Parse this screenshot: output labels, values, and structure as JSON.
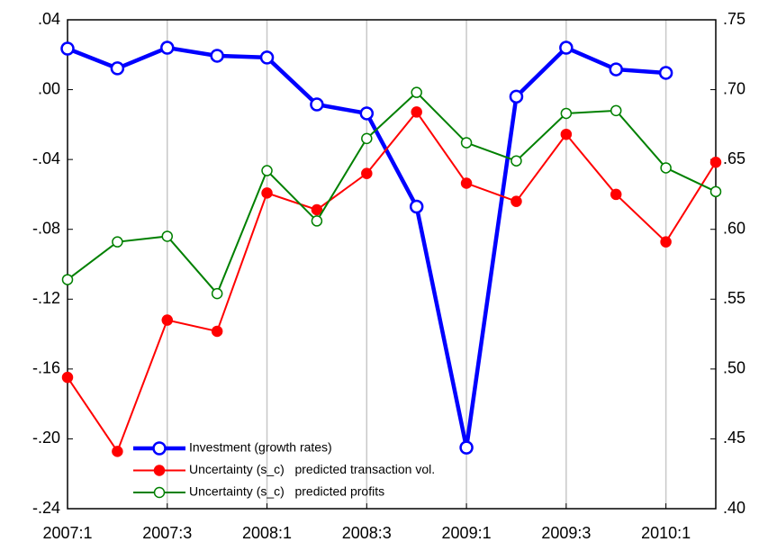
{
  "chart_data": {
    "type": "line",
    "categories": [
      "2007:1",
      null,
      "2007:3",
      null,
      "2008:1",
      null,
      "2008:3",
      null,
      "2009:1",
      null,
      "2009:3",
      null,
      "2010:1",
      null
    ],
    "series": [
      {
        "name": "Investment (growth rates)",
        "color": "#0000ff",
        "axis": "y",
        "marker": "open",
        "values": [
          0.0235,
          0.0122,
          0.024,
          0.0194,
          0.0184,
          -0.0085,
          -0.0136,
          -0.067,
          -0.205,
          -0.004,
          0.024,
          0.0116,
          0.0096,
          null
        ]
      },
      {
        "name": "Uncertainty (s_c)   predicted transaction vol.",
        "color": "#ff0000",
        "axis": "y2",
        "marker": "filled",
        "values": [
          0.494,
          0.441,
          0.535,
          0.527,
          0.626,
          0.614,
          0.64,
          0.684,
          0.633,
          0.62,
          0.668,
          0.625,
          0.591,
          0.648
        ]
      },
      {
        "name": "Uncertainty (s_c)   predicted profits",
        "color": "#008000",
        "axis": "y2",
        "marker": "open",
        "values": [
          0.564,
          0.591,
          0.595,
          0.554,
          0.642,
          0.606,
          0.665,
          0.698,
          0.662,
          0.649,
          0.683,
          0.685,
          0.644,
          0.627
        ]
      }
    ],
    "ylim": [
      -0.24,
      0.04
    ],
    "yticks": [
      {
        "value": -0.24,
        "label": "-.24"
      },
      {
        "value": -0.2,
        "label": "-.20"
      },
      {
        "value": -0.16,
        "label": "-.16"
      },
      {
        "value": -0.12,
        "label": "-.12"
      },
      {
        "value": -0.08,
        "label": "-.08"
      },
      {
        "value": -0.04,
        "label": "-.04"
      },
      {
        "value": 0,
        "label": ".00"
      },
      {
        "value": 0.04,
        "label": ".04"
      }
    ],
    "y2lim": [
      0.4,
      0.75
    ],
    "y2ticks": [
      {
        "value": 0.4,
        "label": ".40"
      },
      {
        "value": 0.45,
        "label": ".45"
      },
      {
        "value": 0.5,
        "label": ".50"
      },
      {
        "value": 0.55,
        "label": ".55"
      },
      {
        "value": 0.6,
        "label": ".60"
      },
      {
        "value": 0.65,
        "label": ".65"
      },
      {
        "value": 0.7,
        "label": ".70"
      },
      {
        "value": 0.75,
        "label": ".75"
      }
    ],
    "grid": true,
    "legend": "lower left"
  }
}
